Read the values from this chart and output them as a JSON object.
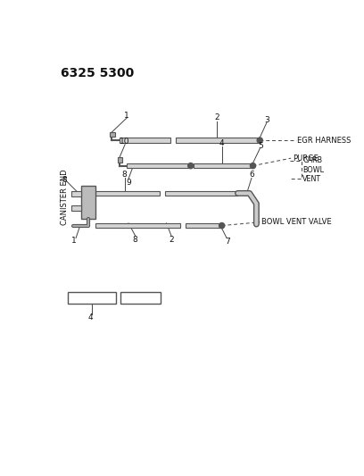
{
  "bg_color": "#ffffff",
  "title": "6325 5300",
  "tube_color": "#d4d4d4",
  "tube_edge": "#555555",
  "line_color": "#444444",
  "text_color": "#111111",
  "egr_harness_text": "EGR HARNESS",
  "purge_text": "PURGE",
  "carb_bowl_vent_text": "CARB\nBOWL\nVENT",
  "bowl_vent_valve_text": "BOWL VENT VALVE",
  "canister_end_text": "CANISTER END"
}
